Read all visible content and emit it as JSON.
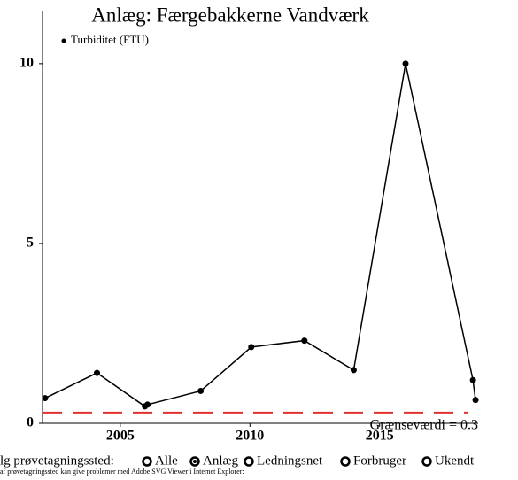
{
  "chart_data": {
    "type": "line",
    "title": "Anlæg: Færgebakkerne Vandværk",
    "series": [
      {
        "name": "Turbiditet (FTU)",
        "color": "#000000",
        "x": [
          2002.1,
          2004.1,
          2005.95,
          2006.05,
          2008.1,
          2010.05,
          2012.1,
          2014.0,
          2016.0,
          2018.6,
          2018.7
        ],
        "values": [
          0.7,
          1.4,
          0.47,
          0.52,
          0.9,
          2.12,
          2.3,
          1.48,
          10.0,
          1.2,
          0.65
        ]
      }
    ],
    "xlim": [
      2002,
      2018.8
    ],
    "xticks": [
      2005,
      2010,
      2015
    ],
    "ylim": [
      0,
      11.4
    ],
    "yticks": [
      0,
      5,
      10
    ],
    "threshold": 0.3,
    "threshold_color": "#e03030",
    "threshold_label": "Grænseværdi = 0.3"
  },
  "controls": {
    "label": "lg prøvetagningssted:",
    "options": [
      "Alle",
      "Anlæg",
      "Ledningsnet",
      "Forbruger",
      "Ukendt"
    ],
    "selected": 1,
    "note": "af prøvetagningssted kan give problemer med Adobe SVG Viewer i Internet Explorer:"
  }
}
